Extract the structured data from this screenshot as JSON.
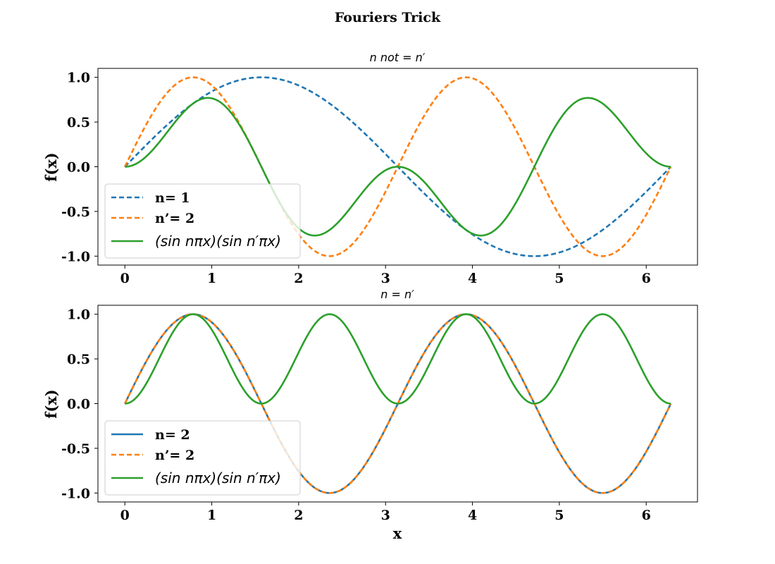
{
  "figure": {
    "suptitle": "Fouriers Trick",
    "xlabel": "x"
  },
  "colors": {
    "blue": "#1f77b4",
    "orange": "#ff7f0e",
    "green": "#2ca02c"
  },
  "chart_data": [
    {
      "type": "line",
      "title": "n  not  = n′",
      "xlabel": "",
      "ylabel": "f(x)",
      "xlim": [
        -0.31,
        6.59
      ],
      "ylim": [
        -1.1,
        1.1
      ],
      "xticks": [
        0,
        1,
        2,
        3,
        4,
        5,
        6
      ],
      "xtick_labels": [
        "0",
        "1",
        "2",
        "3",
        "4",
        "5",
        "6"
      ],
      "yticks": [
        -1.0,
        -0.5,
        0.0,
        0.5,
        1.0
      ],
      "ytick_labels": [
        "-1.0",
        "-0.5",
        "0.0",
        "0.5",
        "1.0"
      ],
      "grid": false,
      "legend_position": "lower-left",
      "x_range": [
        0,
        6.283
      ],
      "series": [
        {
          "name": "n= 1",
          "formula": "sin(1x)",
          "n": 1,
          "m": 0,
          "color": "#1f77b4",
          "style": "dashed",
          "legend_style": "bold"
        },
        {
          "name": "n’= 2",
          "formula": "sin(2x)",
          "n": 2,
          "m": 0,
          "color": "#ff7f0e",
          "style": "dashed",
          "legend_style": "bold"
        },
        {
          "name": "(sin nπx)(sin n′πx)",
          "formula": "sin(1x)·sin(2x)",
          "n": 1,
          "m": 2,
          "color": "#2ca02c",
          "style": "solid",
          "legend_style": "italic"
        }
      ]
    },
    {
      "type": "line",
      "title": "n = n′",
      "xlabel": "x",
      "ylabel": "f(x)",
      "xlim": [
        -0.31,
        6.59
      ],
      "ylim": [
        -1.1,
        1.1
      ],
      "xticks": [
        0,
        1,
        2,
        3,
        4,
        5,
        6
      ],
      "xtick_labels": [
        "0",
        "1",
        "2",
        "3",
        "4",
        "5",
        "6"
      ],
      "yticks": [
        -1.0,
        -0.5,
        0.0,
        0.5,
        1.0
      ],
      "ytick_labels": [
        "-1.0",
        "-0.5",
        "0.0",
        "0.5",
        "1.0"
      ],
      "grid": false,
      "legend_position": "lower-left",
      "x_range": [
        0,
        6.283
      ],
      "series": [
        {
          "name": "n= 2",
          "formula": "sin(2x)",
          "n": 2,
          "m": 0,
          "color": "#1f77b4",
          "style": "solid",
          "legend_style": "bold"
        },
        {
          "name": "n’= 2",
          "formula": "sin(2x)",
          "n": 2,
          "m": 0,
          "color": "#ff7f0e",
          "style": "dashed",
          "legend_style": "bold"
        },
        {
          "name": "(sin nπx)(sin n′πx)",
          "formula": "sin(2x)·sin(2x)",
          "n": 2,
          "m": 2,
          "color": "#2ca02c",
          "style": "solid",
          "legend_style": "italic"
        }
      ]
    }
  ]
}
